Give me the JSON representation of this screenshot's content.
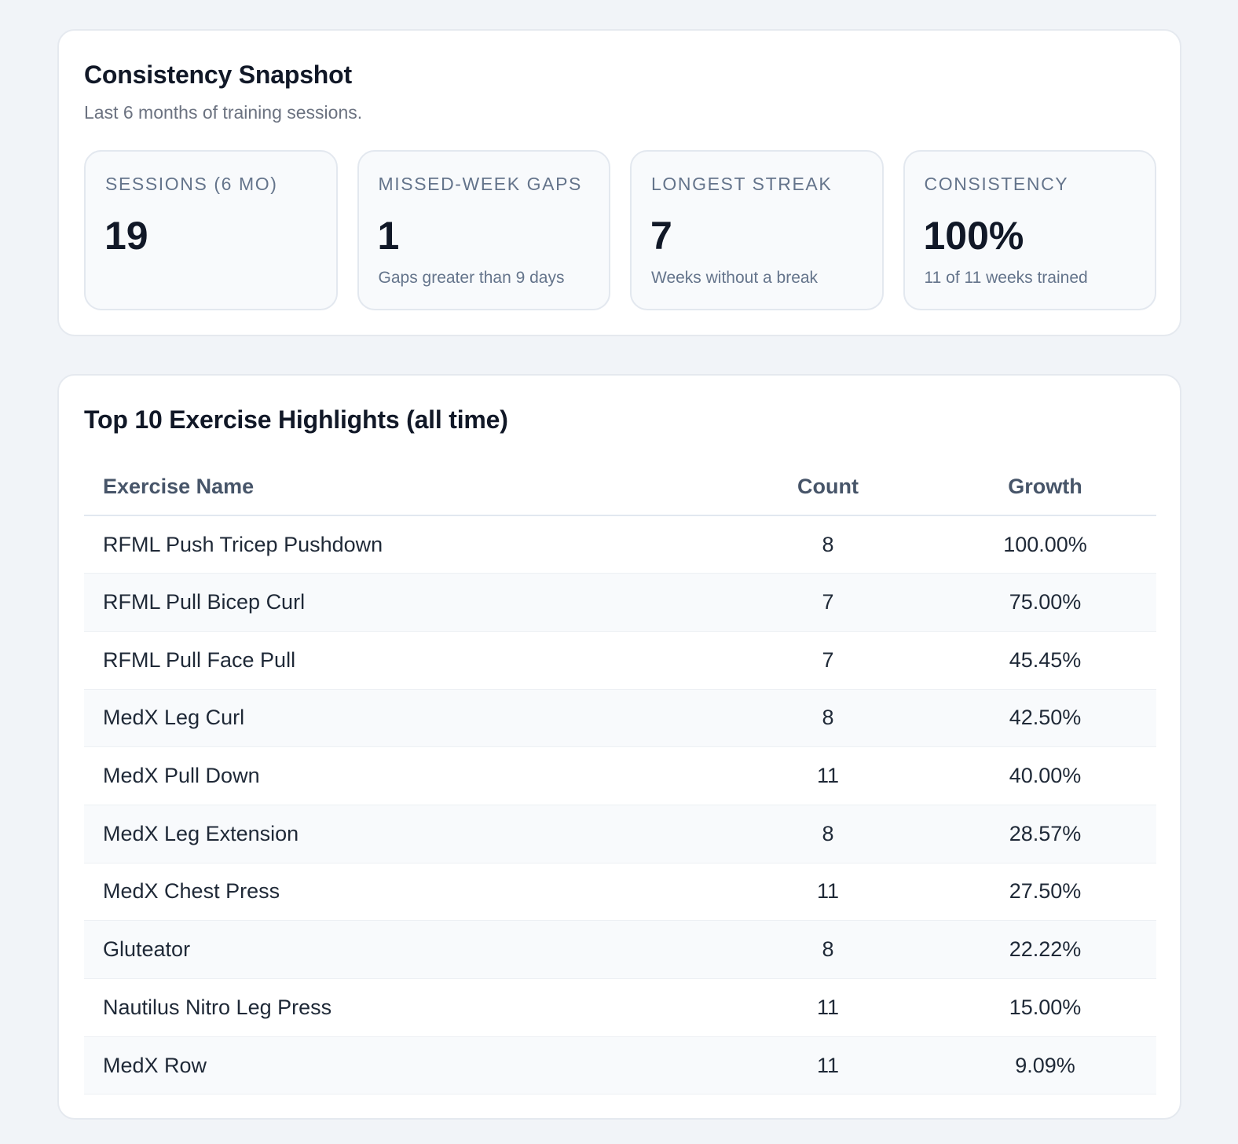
{
  "snapshot": {
    "title": "Consistency Snapshot",
    "subtitle": "Last 6 months of training sessions.",
    "stats": [
      {
        "label": "SESSIONS (6 MO)",
        "value": "19",
        "note": ""
      },
      {
        "label": "MISSED-WEEK GAPS",
        "value": "1",
        "note": "Gaps greater than 9 days"
      },
      {
        "label": "LONGEST STREAK",
        "value": "7",
        "note": "Weeks without a break"
      },
      {
        "label": "CONSISTENCY",
        "value": "100%",
        "note": "11 of 11 weeks trained"
      }
    ]
  },
  "highlights": {
    "title": "Top 10 Exercise Highlights (all time)",
    "columns": {
      "name": "Exercise Name",
      "count": "Count",
      "growth": "Growth"
    },
    "rows": [
      {
        "name": "RFML Push Tricep Pushdown",
        "count": "8",
        "growth": "100.00%"
      },
      {
        "name": "RFML Pull Bicep Curl",
        "count": "7",
        "growth": "75.00%"
      },
      {
        "name": "RFML Pull Face Pull",
        "count": "7",
        "growth": "45.45%"
      },
      {
        "name": "MedX Leg Curl",
        "count": "8",
        "growth": "42.50%"
      },
      {
        "name": "MedX Pull Down",
        "count": "11",
        "growth": "40.00%"
      },
      {
        "name": "MedX Leg Extension",
        "count": "8",
        "growth": "28.57%"
      },
      {
        "name": "MedX Chest Press",
        "count": "11",
        "growth": "27.50%"
      },
      {
        "name": "Gluteator",
        "count": "8",
        "growth": "22.22%"
      },
      {
        "name": "Nautilus Nitro Leg Press",
        "count": "11",
        "growth": "15.00%"
      },
      {
        "name": "MedX Row",
        "count": "11",
        "growth": "9.09%"
      }
    ]
  }
}
